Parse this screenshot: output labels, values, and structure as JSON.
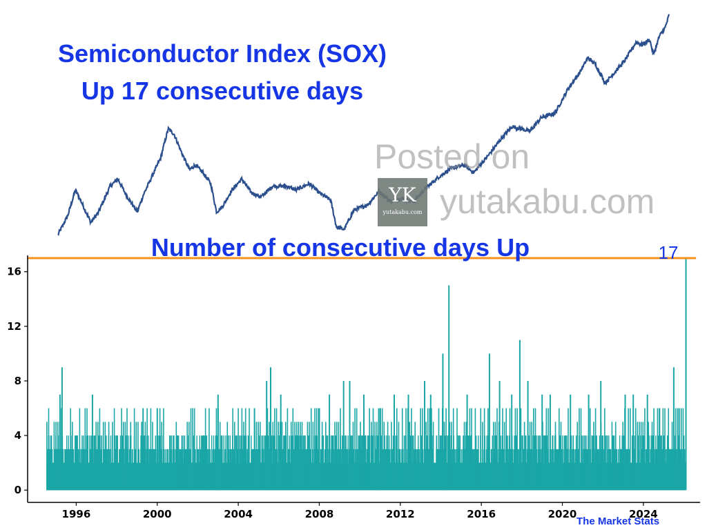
{
  "titles": {
    "main_line1": "Semiconductor Index (SOX)",
    "main_line2": "Up 17 consecutive days",
    "lower_title": "Number of consecutive days Up"
  },
  "watermark": {
    "line1": "Posted on",
    "line2": "yutakabu.com",
    "logo_mark": "YK",
    "logo_text": "yutakabu.com"
  },
  "credit": "The Market Stats",
  "colors": {
    "title": "#1636e6",
    "price_line": "#2b4f8c",
    "bars": "#1aa6a6",
    "threshold_line": "#f5921e"
  },
  "chart_data": [
    {
      "type": "line",
      "title": "Semiconductor Index (SOX)",
      "log_scale": true,
      "axes_visible": false,
      "x_range": [
        1994.5,
        2026.1
      ],
      "series": [
        {
          "values": [
            [
              1994.5,
              230
            ],
            [
              1995.0,
              310
            ],
            [
              1995.4,
              470
            ],
            [
              1995.7,
              390
            ],
            [
              1996.2,
              280
            ],
            [
              1996.6,
              330
            ],
            [
              1997.2,
              500
            ],
            [
              1997.6,
              560
            ],
            [
              1998.0,
              440
            ],
            [
              1998.6,
              330
            ],
            [
              1998.9,
              430
            ],
            [
              1999.3,
              560
            ],
            [
              1999.8,
              780
            ],
            [
              2000.2,
              1250
            ],
            [
              2000.5,
              1150
            ],
            [
              2000.9,
              850
            ],
            [
              2001.3,
              650
            ],
            [
              2001.6,
              700
            ],
            [
              2002.0,
              620
            ],
            [
              2002.4,
              520
            ],
            [
              2002.7,
              330
            ],
            [
              2003.0,
              360
            ],
            [
              2003.5,
              470
            ],
            [
              2004.0,
              560
            ],
            [
              2004.5,
              450
            ],
            [
              2005.0,
              420
            ],
            [
              2005.6,
              500
            ],
            [
              2006.3,
              500
            ],
            [
              2006.8,
              470
            ],
            [
              2007.5,
              520
            ],
            [
              2008.0,
              450
            ],
            [
              2008.6,
              400
            ],
            [
              2008.9,
              260
            ],
            [
              2009.3,
              250
            ],
            [
              2009.8,
              340
            ],
            [
              2010.5,
              370
            ],
            [
              2011.1,
              460
            ],
            [
              2011.7,
              390
            ],
            [
              2012.3,
              410
            ],
            [
              2012.9,
              390
            ],
            [
              2013.5,
              480
            ],
            [
              2014.2,
              580
            ],
            [
              2014.8,
              660
            ],
            [
              2015.5,
              700
            ],
            [
              2016.0,
              620
            ],
            [
              2016.7,
              800
            ],
            [
              2017.5,
              1100
            ],
            [
              2018.0,
              1300
            ],
            [
              2018.9,
              1200
            ],
            [
              2019.5,
              1500
            ],
            [
              2020.2,
              1600
            ],
            [
              2020.9,
              2400
            ],
            [
              2021.5,
              3100
            ],
            [
              2021.9,
              3900
            ],
            [
              2022.3,
              3500
            ],
            [
              2022.8,
              2600
            ],
            [
              2023.3,
              3100
            ],
            [
              2023.8,
              3700
            ],
            [
              2024.4,
              5000
            ],
            [
              2024.7,
              4800
            ],
            [
              2025.1,
              5200
            ],
            [
              2025.3,
              4100
            ],
            [
              2025.6,
              5500
            ],
            [
              2025.9,
              6300
            ],
            [
              2026.1,
              7700
            ]
          ]
        }
      ]
    },
    {
      "type": "bar",
      "title": "Number of consecutive days Up",
      "x_range": [
        1993.6,
        2026.8
      ],
      "x_ticks": [
        "1996",
        "2000",
        "2004",
        "2008",
        "2012",
        "2016",
        "2020",
        "2024"
      ],
      "y_range": [
        -0.9,
        17.2
      ],
      "y_ticks": [
        "0",
        "4",
        "8",
        "12",
        "16"
      ],
      "grid": false,
      "threshold_line": 17,
      "threshold_label": "17",
      "peaks": [
        [
          1995.3,
          9
        ],
        [
          1995.2,
          7
        ],
        [
          1996.8,
          7
        ],
        [
          1999.3,
          6
        ],
        [
          2000.0,
          6
        ],
        [
          2003.0,
          7
        ],
        [
          2004.8,
          6
        ],
        [
          2005.4,
          8
        ],
        [
          2005.6,
          9
        ],
        [
          2006.1,
          7
        ],
        [
          2008.0,
          6
        ],
        [
          2008.5,
          7
        ],
        [
          2009.2,
          8
        ],
        [
          2009.5,
          8
        ],
        [
          2010.2,
          7
        ],
        [
          2011.0,
          6
        ],
        [
          2011.7,
          7
        ],
        [
          2012.4,
          7
        ],
        [
          2013.2,
          8
        ],
        [
          2013.5,
          7
        ],
        [
          2014.1,
          10
        ],
        [
          2014.4,
          15
        ],
        [
          2015.3,
          7
        ],
        [
          2016.4,
          10
        ],
        [
          2016.9,
          8
        ],
        [
          2017.5,
          7
        ],
        [
          2017.9,
          11
        ],
        [
          2018.3,
          8
        ],
        [
          2019.0,
          7
        ],
        [
          2019.4,
          7
        ],
        [
          2020.4,
          7
        ],
        [
          2021.3,
          7
        ],
        [
          2021.9,
          8
        ],
        [
          2023.1,
          7
        ],
        [
          2023.5,
          7
        ],
        [
          2024.2,
          7
        ],
        [
          2024.8,
          6
        ],
        [
          2025.5,
          9
        ],
        [
          2025.7,
          6
        ],
        [
          2026.1,
          17
        ]
      ]
    }
  ]
}
